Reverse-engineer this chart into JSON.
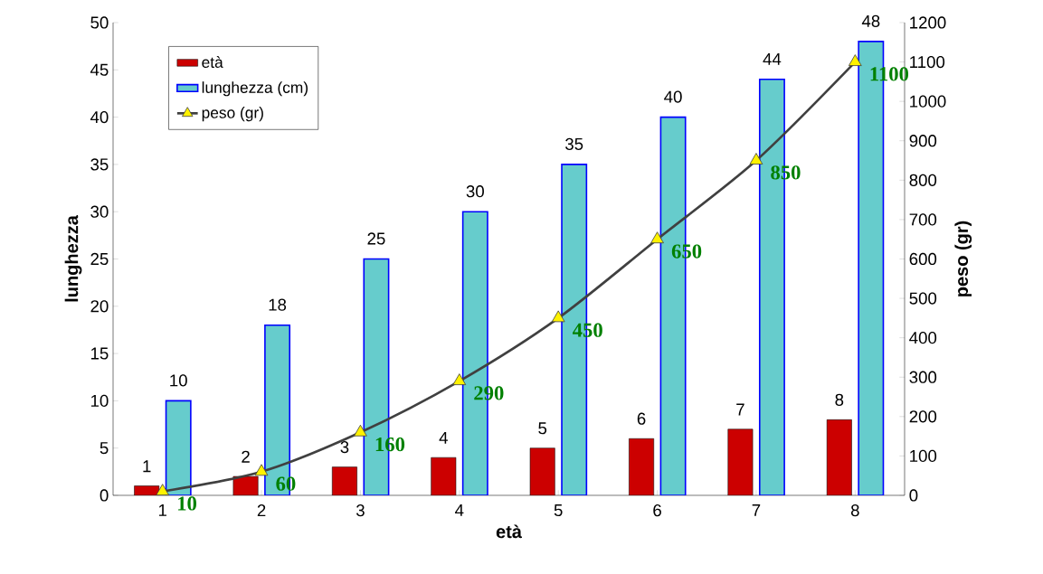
{
  "chart_data": {
    "type": "bar",
    "xlabel": "età",
    "ylabel": "lunghezza",
    "y2label": "peso (gr)",
    "categories": [
      "1",
      "2",
      "3",
      "4",
      "5",
      "6",
      "7",
      "8"
    ],
    "series": [
      {
        "name": "età",
        "color": "#cc0000",
        "values": [
          1,
          2,
          3,
          4,
          5,
          6,
          7,
          8
        ]
      },
      {
        "name": "lunghezza (cm)",
        "color": "#66cccc",
        "values": [
          10,
          18,
          25,
          30,
          35,
          40,
          44,
          48
        ]
      },
      {
        "name": "peso (gr)",
        "type": "line",
        "axis": "y2",
        "color": "#404040",
        "marker": "triangle",
        "values": [
          10,
          60,
          160,
          290,
          450,
          650,
          850,
          1100
        ]
      }
    ],
    "ylim": [
      0,
      50
    ],
    "yticks": [
      0,
      5,
      10,
      15,
      20,
      25,
      30,
      35,
      40,
      45,
      50
    ],
    "y2lim": [
      0,
      1200
    ],
    "y2ticks": [
      0,
      100,
      200,
      300,
      400,
      500,
      600,
      700,
      800,
      900,
      1000,
      1100,
      1200
    ],
    "data_labels": true,
    "legend": "top left"
  }
}
